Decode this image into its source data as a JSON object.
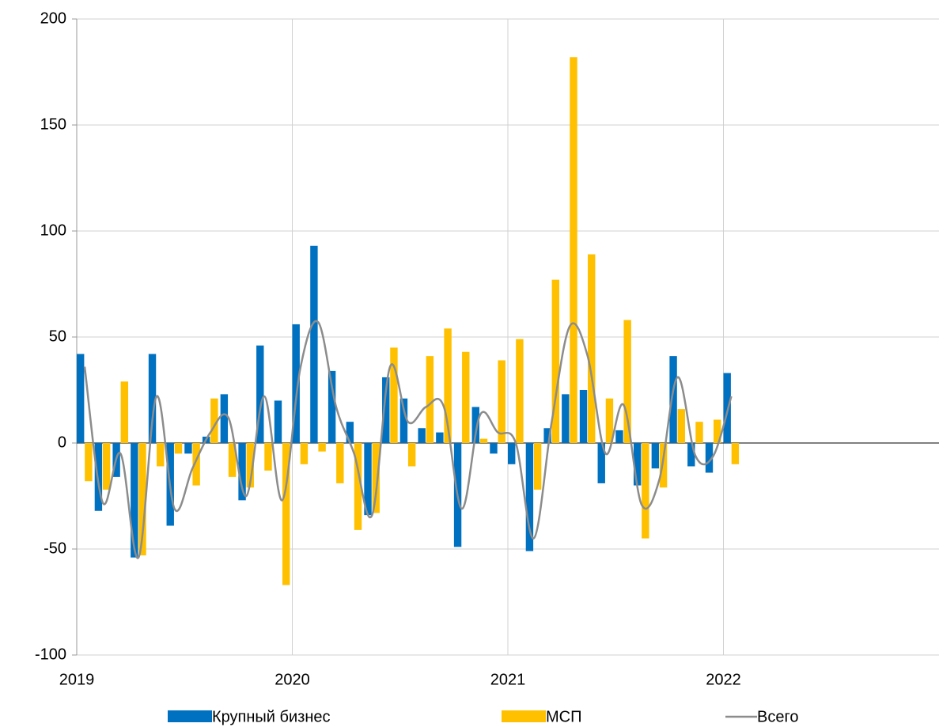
{
  "chart_data": {
    "type": "bar_line",
    "categories": [
      "2019",
      null,
      null,
      null,
      null,
      null,
      null,
      null,
      null,
      null,
      null,
      null,
      "2020",
      null,
      null,
      null,
      null,
      null,
      null,
      null,
      null,
      null,
      null,
      null,
      "2021",
      null,
      null,
      null,
      null,
      null,
      null,
      null,
      null,
      null,
      null,
      null,
      "2022",
      null,
      null,
      null,
      null,
      null,
      null,
      null,
      null,
      null,
      null,
      null
    ],
    "series": [
      {
        "name": "Крупный бизнес",
        "kind": "bar",
        "color": "#0070c0",
        "values": [
          42,
          -32,
          -16,
          -54,
          42,
          -39,
          -5,
          3,
          23,
          -27,
          46,
          20,
          56,
          93,
          34,
          10,
          -34,
          31,
          21,
          7,
          5,
          -49,
          17,
          -5,
          -10,
          -51,
          7,
          23,
          25,
          -19,
          6,
          -20,
          -12,
          41,
          -11,
          -14,
          33,
          null,
          null,
          null,
          null,
          null,
          null,
          null,
          null,
          null,
          null,
          null
        ]
      },
      {
        "name": "МСП",
        "kind": "bar",
        "color": "#ffc000",
        "values": [
          -18,
          -22,
          29,
          -53,
          -11,
          -5,
          -20,
          21,
          -16,
          -21,
          -13,
          -67,
          -10,
          -4,
          -19,
          -41,
          -33,
          45,
          -11,
          41,
          54,
          43,
          2,
          39,
          49,
          -22,
          77,
          182,
          89,
          21,
          58,
          -45,
          -21,
          16,
          10,
          11,
          -10,
          null,
          null,
          null,
          null,
          null,
          null,
          null,
          null,
          null,
          null,
          null
        ]
      },
      {
        "name": "Всего",
        "kind": "line",
        "color": "#8c8c8c",
        "values": [
          36,
          -28,
          -5,
          -54,
          22,
          -31,
          -12,
          5,
          12,
          -25,
          22,
          -27,
          35,
          57,
          17,
          -5,
          -34,
          36,
          10,
          17,
          17,
          -31,
          13,
          5,
          0,
          -45,
          10,
          55,
          41,
          -5,
          18,
          -29,
          -17,
          31,
          -6,
          -6,
          22,
          null,
          null,
          null,
          null,
          null,
          null,
          null,
          null,
          null,
          null,
          null
        ]
      }
    ],
    "ylim": [
      -100,
      200
    ],
    "yticks": [
      -100,
      -50,
      0,
      50,
      100,
      150,
      200
    ],
    "grid": true
  }
}
